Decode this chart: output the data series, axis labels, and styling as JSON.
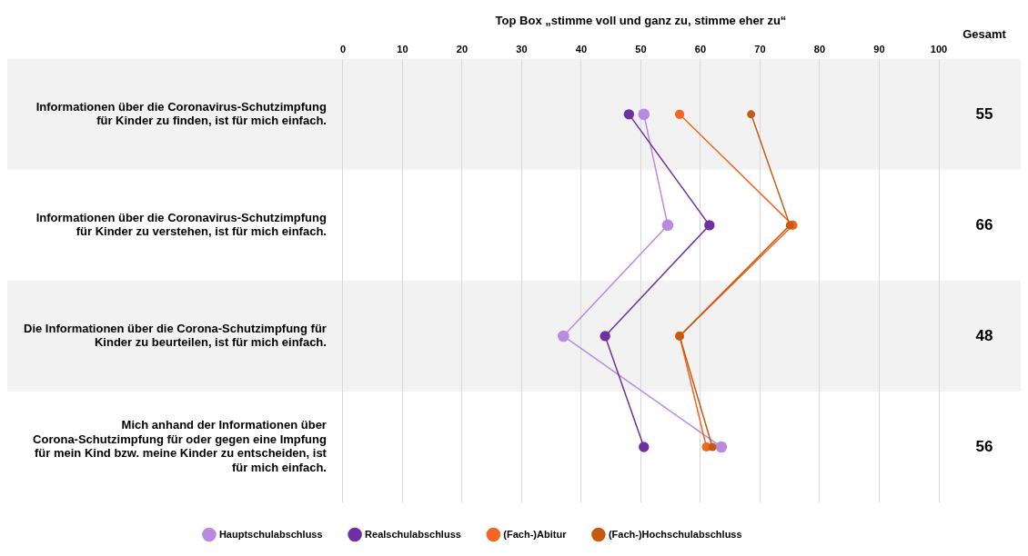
{
  "chart_data": {
    "type": "line",
    "orientation": "horizontal",
    "xlabel": "Top Box „stimme voll und ganz zu, stimme eher zu“",
    "categories": [
      "Informationen über die Coronavirus-Schutzimpfung für Kinder zu finden, ist für mich einfach.",
      "Informationen über die Coronavirus-Schutzimpfung für Kinder zu verstehen, ist für mich einfach.",
      "Die Informationen über die Corona-Schutzimpfung für Kinder zu beurteilen, ist für mich einfach.",
      "Mich anhand der Informationen über Corona-Schutzimpfung für oder gegen eine Impfung für mein Kind bzw. meine Kinder zu entscheiden, ist für mich einfach."
    ],
    "series": [
      {
        "name": "Hauptschulabschluss",
        "color": "#b98ae0",
        "values": [
          50.5,
          54.5,
          37,
          63.5
        ]
      },
      {
        "name": "Realschulabschluss",
        "color": "#7030a0",
        "values": [
          48,
          61.5,
          44,
          50.5
        ]
      },
      {
        "name": "(Fach-)Abitur",
        "color": "#f26522",
        "values": [
          56.5,
          75.5,
          56.5,
          61
        ]
      },
      {
        "name": "(Fach-)Hochschulabschluss",
        "color": "#c55a11",
        "values": [
          68.5,
          75,
          56.5,
          62
        ]
      }
    ],
    "xlim": [
      0,
      100
    ],
    "xticks": [
      0,
      10,
      20,
      30,
      40,
      50,
      60,
      70,
      80,
      90,
      100
    ],
    "grid": "x",
    "legend": "bottom",
    "marker": "circle",
    "line_style": "solid",
    "annotations": [
      "Gesamt",
      "55",
      "66",
      "48",
      "56"
    ]
  }
}
